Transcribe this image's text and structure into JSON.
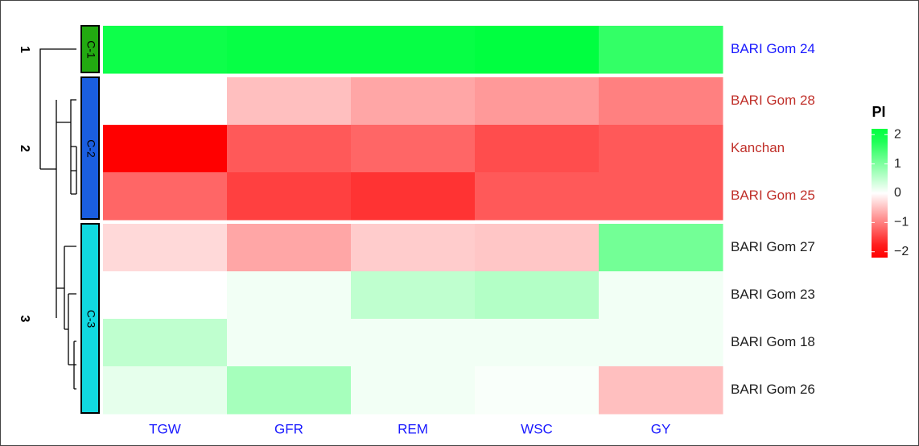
{
  "chart_data": {
    "type": "heatmap",
    "columns": [
      "TGW",
      "GFR",
      "REM",
      "WSC",
      "GY"
    ],
    "rows": [
      "BARI Gom 24",
      "BARI Gom 28",
      "Kanchan",
      "BARI Gom 25",
      "BARI Gom 27",
      "BARI Gom 23",
      "BARI Gom 18",
      "BARI Gom 26"
    ],
    "values": [
      [
        1.9,
        1.95,
        1.95,
        2.0,
        1.6
      ],
      [
        0.0,
        -0.5,
        -0.7,
        -0.8,
        -1.0
      ],
      [
        -2.0,
        -1.3,
        -1.2,
        -1.4,
        -1.3
      ],
      [
        -1.2,
        -1.5,
        -1.6,
        -1.3,
        -1.3
      ],
      [
        -0.3,
        -0.7,
        -0.4,
        -0.45,
        1.1
      ],
      [
        0.0,
        0.1,
        0.5,
        0.6,
        0.1
      ],
      [
        0.5,
        0.1,
        0.1,
        0.1,
        0.1
      ],
      [
        0.2,
        0.7,
        0.1,
        0.05,
        -0.5
      ]
    ],
    "row_label_colors": [
      "#1a1aff",
      "#c0302a",
      "#c0302a",
      "#c0302a",
      "#222222",
      "#222222",
      "#222222",
      "#222222"
    ],
    "column_label_color": "#1a1aff",
    "clusters": [
      {
        "id": 1,
        "name": "C-1",
        "size": 1,
        "color": "#22aa11"
      },
      {
        "id": 2,
        "name": "C-2",
        "size": 3,
        "color": "#1a5ee0"
      },
      {
        "id": 3,
        "name": "C-3",
        "size": 4,
        "color": "#11d8e0"
      }
    ],
    "colorscale": {
      "low": "#ff0000",
      "mid": "#ffffff",
      "high": "#00ff40"
    },
    "legend_title": "PI",
    "clim": [
      -2.2,
      2.2
    ],
    "cticks": [
      2,
      1,
      0,
      {
        "value": -1,
        "label": "−1"
      },
      {
        "value": -2,
        "label": "−2"
      }
    ]
  }
}
